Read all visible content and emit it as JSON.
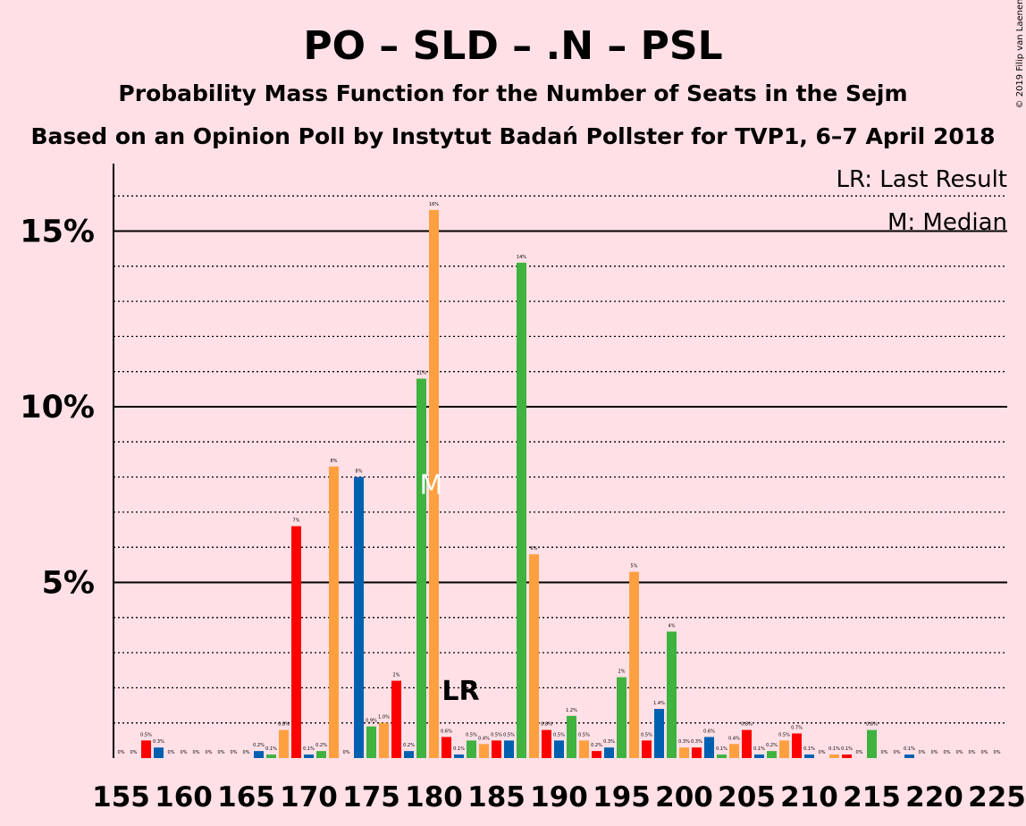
{
  "header": {
    "title": "PO – SLD – .N – PSL",
    "subtitle": "Probability Mass Function for the Number of Seats in the Sejm",
    "poll": "Based on an Opinion Poll by Instytut Badań Pollster for TVP1, 6–7 April 2018",
    "copyright": "© 2019 Filip van Laenen"
  },
  "legend": {
    "lr": "LR: Last Result",
    "median": "M: Median"
  },
  "colors": {
    "background": "#FFE0E6",
    "red": "#FF0000",
    "blue": "#0060B0",
    "green": "#3FB23F",
    "orange": "#FFA040"
  },
  "chart_data": {
    "type": "bar",
    "x_start": 155,
    "x_end": 225,
    "xticks": [
      155,
      160,
      165,
      170,
      175,
      180,
      185,
      190,
      195,
      200,
      205,
      210,
      215,
      220,
      225
    ],
    "ylim": [
      0,
      17
    ],
    "yticks_major": [
      5,
      10,
      15
    ],
    "ytick_labels": [
      "5%",
      "10%",
      "15%"
    ],
    "color_cycle": [
      "green",
      "orange",
      "red",
      "blue"
    ],
    "values": [
      0.0,
      0.0,
      0.5,
      0.3,
      0.0,
      0.0,
      0.0,
      0.0,
      0.0,
      0.0,
      0.0,
      0.2,
      0.1,
      0.8,
      6.6,
      0.1,
      0.2,
      8.3,
      0.0,
      8.0,
      0.9,
      1.0,
      2.2,
      0.2,
      10.8,
      15.6,
      0.6,
      0.1,
      0.5,
      0.4,
      0.5,
      0.5,
      14.1,
      5.8,
      0.8,
      0.5,
      1.2,
      0.5,
      0.2,
      0.3,
      2.3,
      5.3,
      0.5,
      1.4,
      3.6,
      0.3,
      0.3,
      0.6,
      0.1,
      0.4,
      0.8,
      0.1,
      0.2,
      0.5,
      0.7,
      0.1,
      0.0,
      0.1,
      0.1,
      0.0,
      0.8,
      0.0,
      0.0,
      0.1,
      0.0,
      0.0,
      0.0,
      0.0,
      0.0,
      0.0,
      0.0
    ],
    "value_labels": [
      "0%",
      "0%",
      "0.5%",
      "0.3%",
      "0%",
      "0%",
      "0%",
      "0%",
      "0%",
      "0%",
      "0%",
      "0.2%",
      "0.1%",
      "0.8%",
      "7%",
      "0.1%",
      "0.2%",
      "8%",
      "0%",
      "8%",
      "0.9%",
      "1.0%",
      "2%",
      "0.2%",
      "11%",
      "16%",
      "0.6%",
      "0.1%",
      "0.5%",
      "0.4%",
      "0.5%",
      "0.5%",
      "14%",
      "6%",
      "0.8%",
      "0.5%",
      "1.2%",
      "0.5%",
      "0.2%",
      "0.3%",
      "2%",
      "5%",
      "0.5%",
      "1.4%",
      "4%",
      "0.3%",
      "0.3%",
      "0.6%",
      "0.1%",
      "0.4%",
      "0.8%",
      "0.1%",
      "0.2%",
      "0.5%",
      "0.7%",
      "0.1%",
      "0%",
      "0.1%",
      "0.1%",
      "0%",
      "0.8%",
      "0%",
      "0%",
      "0.1%",
      "0%",
      "0%",
      "0%",
      "0%",
      "0%",
      "0%",
      "0%"
    ],
    "last_result_seat": 182,
    "last_result_label": "LR",
    "median_seat": 180,
    "median_label": "M"
  }
}
